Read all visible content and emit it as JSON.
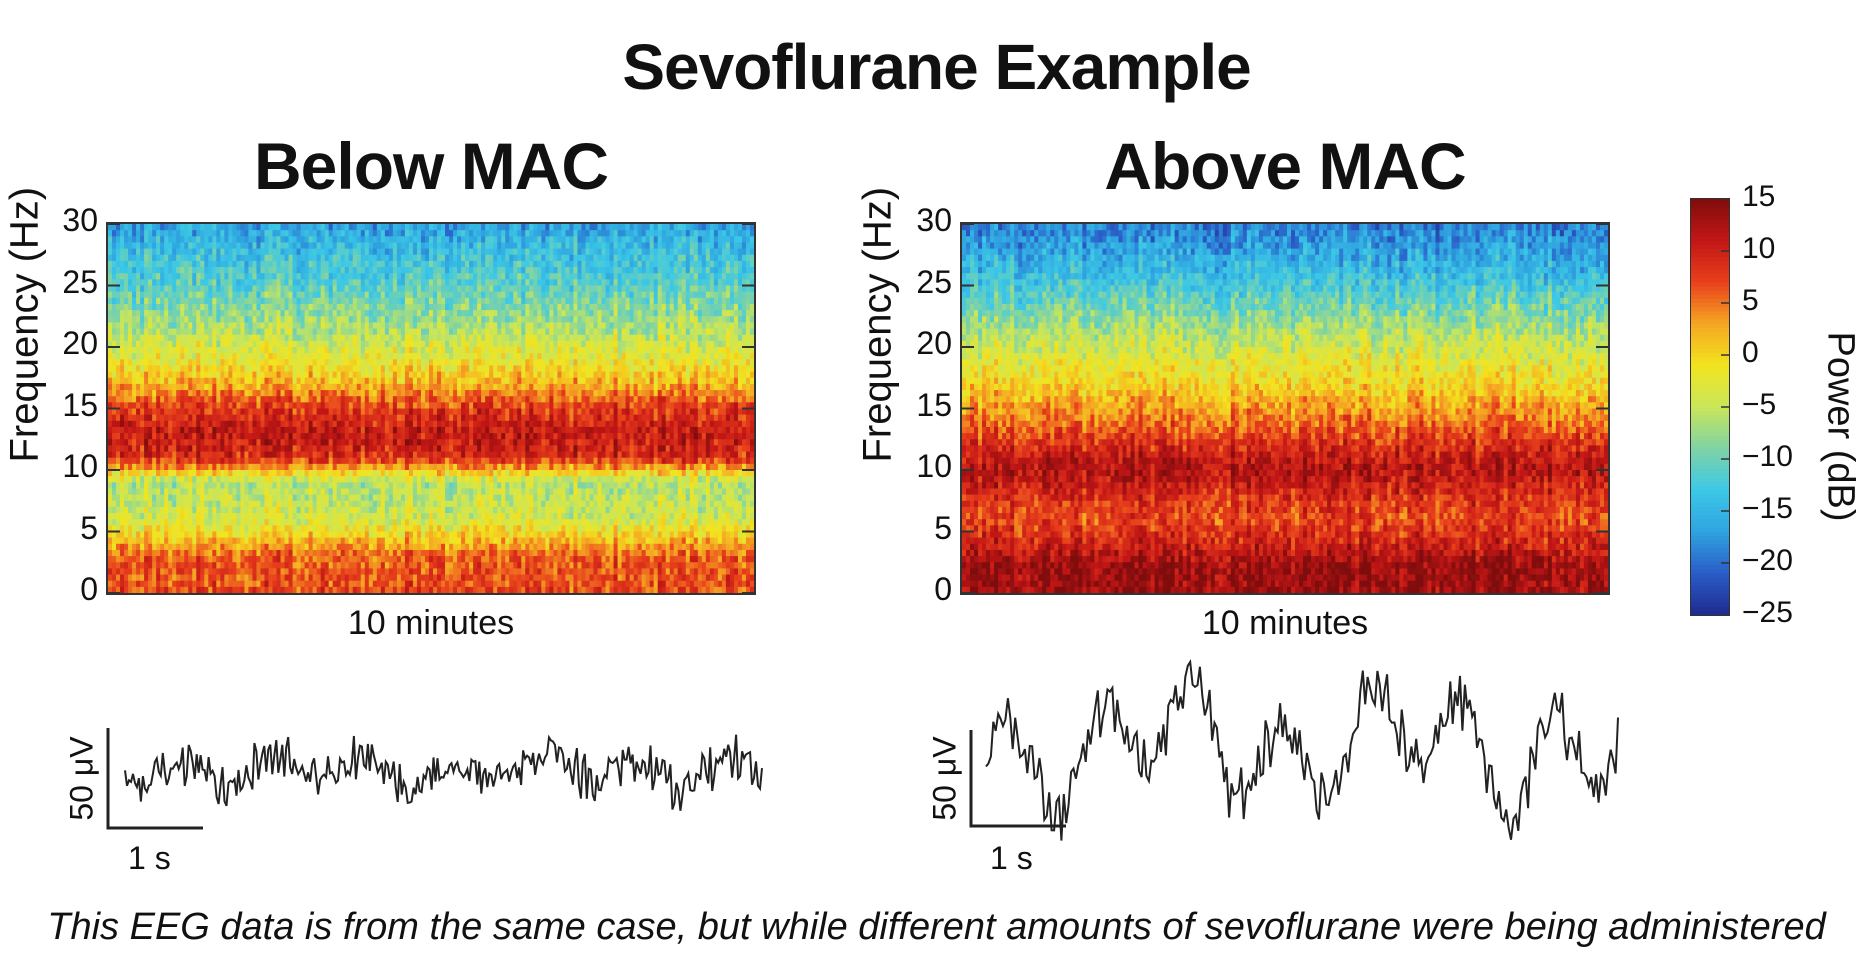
{
  "title": "Sevoflurane Example",
  "caption": "This EEG data is from the same case, but while different amounts of sevoflurane were being administered",
  "colors": {
    "colormap": [
      "#1f2b8f",
      "#2a5cc7",
      "#2fa3e0",
      "#3cc8e6",
      "#7fd3a5",
      "#c9e65a",
      "#f2e41f",
      "#f5a623",
      "#e8401c",
      "#c21616",
      "#7f0d0d"
    ],
    "axis": "#333333",
    "trace": "#222222"
  },
  "colorbar": {
    "label": "Power (dB)",
    "ticks": [
      "15",
      "10",
      "5",
      "0",
      "−5",
      "−10",
      "−15",
      "−20",
      "−25"
    ],
    "min": -25,
    "max": 15
  },
  "chart_data": [
    {
      "type": "heatmap",
      "title": "Below MAC",
      "xlabel": "10 minutes",
      "ylabel": "Frequency (Hz)",
      "ylim": [
        0,
        30
      ],
      "yticks": [
        "30",
        "25",
        "20",
        "15",
        "10",
        "5",
        "0"
      ],
      "power_profile_db": [
        {
          "freq": 0,
          "db": 7
        },
        {
          "freq": 3,
          "db": 6
        },
        {
          "freq": 6,
          "db": -4
        },
        {
          "freq": 9,
          "db": -6
        },
        {
          "freq": 11,
          "db": 9
        },
        {
          "freq": 13,
          "db": 11
        },
        {
          "freq": 15,
          "db": 8
        },
        {
          "freq": 17,
          "db": 2
        },
        {
          "freq": 19,
          "db": -2
        },
        {
          "freq": 22,
          "db": -7
        },
        {
          "freq": 25,
          "db": -11
        },
        {
          "freq": 28,
          "db": -14
        },
        {
          "freq": 30,
          "db": -17
        }
      ],
      "trace_scale": {
        "amplitude": "50 μV",
        "time": "1 s"
      }
    },
    {
      "type": "heatmap",
      "title": "Above MAC",
      "xlabel": "10 minutes",
      "ylabel": "Frequency (Hz)",
      "ylim": [
        0,
        30
      ],
      "yticks": [
        "30",
        "25",
        "20",
        "15",
        "10",
        "5",
        "0"
      ],
      "power_profile_db": [
        {
          "freq": 0,
          "db": 13
        },
        {
          "freq": 2,
          "db": 14
        },
        {
          "freq": 4,
          "db": 10
        },
        {
          "freq": 6,
          "db": 7
        },
        {
          "freq": 8,
          "db": 9
        },
        {
          "freq": 10,
          "db": 12
        },
        {
          "freq": 12,
          "db": 9
        },
        {
          "freq": 14,
          "db": 5
        },
        {
          "freq": 17,
          "db": 0
        },
        {
          "freq": 20,
          "db": -4
        },
        {
          "freq": 23,
          "db": -9
        },
        {
          "freq": 26,
          "db": -14
        },
        {
          "freq": 30,
          "db": -19
        }
      ],
      "trace_scale": {
        "amplitude": "50 μV",
        "time": "1 s"
      }
    }
  ]
}
